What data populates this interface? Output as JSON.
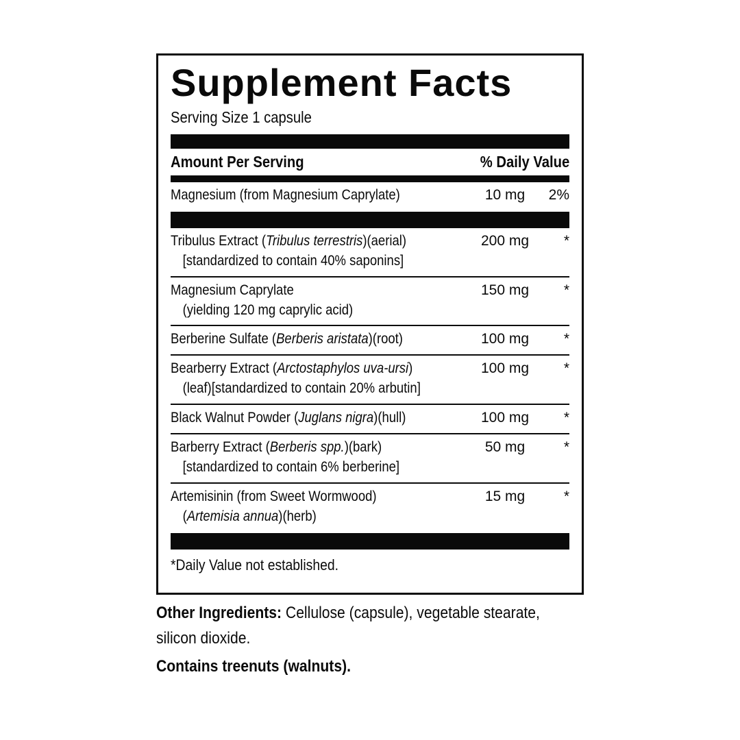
{
  "colors": {
    "ink": "#0a0a0a",
    "background": "#ffffff"
  },
  "panel": {
    "title": "Supplement Facts",
    "serving_size": "Serving Size 1 capsule",
    "header": {
      "amount_label": "Amount Per Serving",
      "dv_label": "% Daily Value"
    },
    "primary_row": {
      "segments": [
        {
          "t": "Magnesium (from Magnesium Caprylate)"
        }
      ],
      "amount": "10 mg",
      "dv": "2%"
    },
    "rows": [
      {
        "segments": [
          {
            "t": "Tribulus Extract ("
          },
          {
            "t": "Tribulus terrestris",
            "i": true
          },
          {
            "t": ")(aerial)"
          }
        ],
        "sub_segments": [
          {
            "t": "[standardized to contain 40% saponins]"
          }
        ],
        "amount": "200 mg",
        "dv": "*"
      },
      {
        "segments": [
          {
            "t": "Magnesium Caprylate"
          }
        ],
        "sub_segments": [
          {
            "t": "(yielding 120 mg caprylic acid)"
          }
        ],
        "amount": "150 mg",
        "dv": "*"
      },
      {
        "segments": [
          {
            "t": "Berberine Sulfate ("
          },
          {
            "t": "Berberis aristata",
            "i": true
          },
          {
            "t": ")(root)"
          }
        ],
        "sub_segments": null,
        "amount": "100 mg",
        "dv": "*"
      },
      {
        "segments": [
          {
            "t": "Bearberry Extract ("
          },
          {
            "t": "Arctostaphylos uva-ursi",
            "i": true
          },
          {
            "t": ")"
          }
        ],
        "sub_segments": [
          {
            "t": "(leaf)[standardized to contain 20% arbutin]"
          }
        ],
        "amount": "100 mg",
        "dv": "*"
      },
      {
        "segments": [
          {
            "t": "Black Walnut Powder ("
          },
          {
            "t": "Juglans nigra",
            "i": true
          },
          {
            "t": ")(hull)"
          }
        ],
        "sub_segments": null,
        "amount": "100 mg",
        "dv": "*"
      },
      {
        "segments": [
          {
            "t": "Barberry Extract ("
          },
          {
            "t": "Berberis spp.",
            "i": true
          },
          {
            "t": ")(bark)"
          }
        ],
        "sub_segments": [
          {
            "t": "[standardized to contain 6% berberine]"
          }
        ],
        "amount": "50 mg",
        "dv": "*"
      },
      {
        "segments": [
          {
            "t": "Artemisinin (from Sweet Wormwood)"
          }
        ],
        "sub_segments": [
          {
            "t": "("
          },
          {
            "t": "Artemisia annua",
            "i": true
          },
          {
            "t": ")(herb)"
          }
        ],
        "amount": "15 mg",
        "dv": "*"
      }
    ],
    "footnote": "*Daily Value not established."
  },
  "below": {
    "other_ingredients": {
      "label": "Other Ingredients:",
      "line1_rest": " Cellulose (capsule), vegetable stearate,",
      "line2": "silicon dioxide."
    },
    "allergen": "Contains treenuts (walnuts)."
  }
}
